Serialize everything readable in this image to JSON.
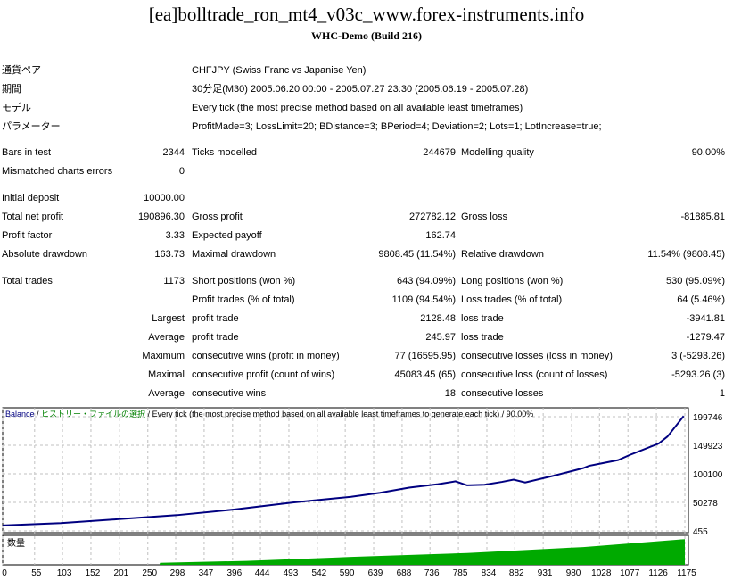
{
  "header": {
    "title": "[ea]bolltrade_ron_mt4_v03c_www.forex-instruments.info",
    "subtitle": "WHC-Demo (Build 216)"
  },
  "info": [
    {
      "label": "通貨ペア",
      "value": "CHFJPY (Swiss Franc vs Japanise Yen)"
    },
    {
      "label": "期間",
      "value": "30分足(M30) 2005.06.20 00:00 - 2005.07.27 23:30 (2005.06.19 - 2005.07.28)"
    },
    {
      "label": "モデル",
      "value": "Every tick (the most precise method based on all available least timeframes)"
    },
    {
      "label": "パラメーター",
      "value": "ProfitMade=3; LossLimit=20; BDistance=3; BPeriod=4; Deviation=2; Lots=1; LotIncrease=true;"
    }
  ],
  "stats": [
    {
      "l1": "Bars in test",
      "v1": "2344",
      "l2": "Ticks modelled",
      "v2": "244679",
      "l3": "Modelling quality",
      "v3": "90.00%"
    },
    {
      "l1": "Mismatched charts errors",
      "v1": "0",
      "l2": "",
      "v2": "",
      "l3": "",
      "v3": ""
    },
    {
      "l1": "Initial deposit",
      "v1": "10000.00",
      "l2": "",
      "v2": "",
      "l3": "",
      "v3": ""
    },
    {
      "l1": "Total net profit",
      "v1": "190896.30",
      "l2": "Gross profit",
      "v2": "272782.12",
      "l3": "Gross loss",
      "v3": "-81885.81"
    },
    {
      "l1": "Profit factor",
      "v1": "3.33",
      "l2": "Expected payoff",
      "v2": "162.74",
      "l3": "",
      "v3": ""
    },
    {
      "l1": "Absolute drawdown",
      "v1": "163.73",
      "l2": "Maximal drawdown",
      "v2": "9808.45 (11.54%)",
      "l3": "Relative drawdown",
      "v3": "11.54% (9808.45)"
    },
    {
      "l1": "Total trades",
      "v1": "1173",
      "l2": "Short positions (won %)",
      "v2": "643 (94.09%)",
      "l3": "Long positions (won %)",
      "v3": "530 (95.09%)"
    },
    {
      "l1": "",
      "v1": "",
      "l2": "Profit trades (% of total)",
      "v2": "1109 (94.54%)",
      "l3": "Loss trades (% of total)",
      "v3": "64 (5.46%)"
    },
    {
      "l1": "",
      "v1": "Largest",
      "l2": "profit trade",
      "v2": "2128.48",
      "l3": "loss trade",
      "v3": "-3941.81"
    },
    {
      "l1": "",
      "v1": "Average",
      "l2": "profit trade",
      "v2": "245.97",
      "l3": "loss trade",
      "v3": "-1279.47"
    },
    {
      "l1": "",
      "v1": "Maximum",
      "l2": "consecutive wins (profit in money)",
      "v2": "77 (16595.95)",
      "l3": "consecutive losses (loss in money)",
      "v3": "3 (-5293.26)"
    },
    {
      "l1": "",
      "v1": "Maximal",
      "l2": "consecutive profit (count of wins)",
      "v2": "45083.45 (65)",
      "l3": "consecutive loss (count of losses)",
      "v3": "-5293.26 (3)"
    },
    {
      "l1": "",
      "v1": "Average",
      "l2": "consecutive wins",
      "v2": "18",
      "l3": "consecutive losses",
      "v3": "1"
    }
  ],
  "chart_data": {
    "type": "line",
    "legend": {
      "balance": "Balance",
      "history": "ヒストリー・ファイルの選択",
      "desc": "/ Every tick (the most precise method based on all available least timeframes to generate each tick) / 90.00%"
    },
    "volume_label": "数量",
    "x_ticks": [
      "0",
      "55",
      "103",
      "152",
      "201",
      "250",
      "298",
      "347",
      "396",
      "444",
      "493",
      "542",
      "590",
      "639",
      "688",
      "736",
      "785",
      "834",
      "882",
      "931",
      "980",
      "1028",
      "1077",
      "1126",
      "1175"
    ],
    "y_ticks": [
      "199746",
      "149923",
      "100100",
      "50278",
      "455"
    ],
    "ylim": [
      455,
      199746
    ],
    "xlim": [
      0,
      1175
    ],
    "balance": [
      [
        0,
        10000
      ],
      [
        100,
        14000
      ],
      [
        200,
        21000
      ],
      [
        300,
        28000
      ],
      [
        400,
        38000
      ],
      [
        500,
        50000
      ],
      [
        600,
        60000
      ],
      [
        650,
        67000
      ],
      [
        700,
        76000
      ],
      [
        750,
        82000
      ],
      [
        780,
        87000
      ],
      [
        800,
        80000
      ],
      [
        830,
        81000
      ],
      [
        860,
        86000
      ],
      [
        880,
        90000
      ],
      [
        900,
        85000
      ],
      [
        950,
        97000
      ],
      [
        1000,
        110000
      ],
      [
        1010,
        114000
      ],
      [
        1030,
        118000
      ],
      [
        1060,
        124000
      ],
      [
        1080,
        133000
      ],
      [
        1130,
        153000
      ],
      [
        1145,
        165000
      ],
      [
        1173,
        200896
      ]
    ],
    "volume": [
      [
        0,
        0
      ],
      [
        270,
        0
      ],
      [
        271,
        1
      ],
      [
        420,
        2
      ],
      [
        600,
        4
      ],
      [
        800,
        6
      ],
      [
        1000,
        9
      ],
      [
        1175,
        13
      ]
    ],
    "colors": {
      "balance": "#000080",
      "volume": "#00aa00",
      "grid": "#c0c0c0",
      "history": "#008000"
    }
  }
}
